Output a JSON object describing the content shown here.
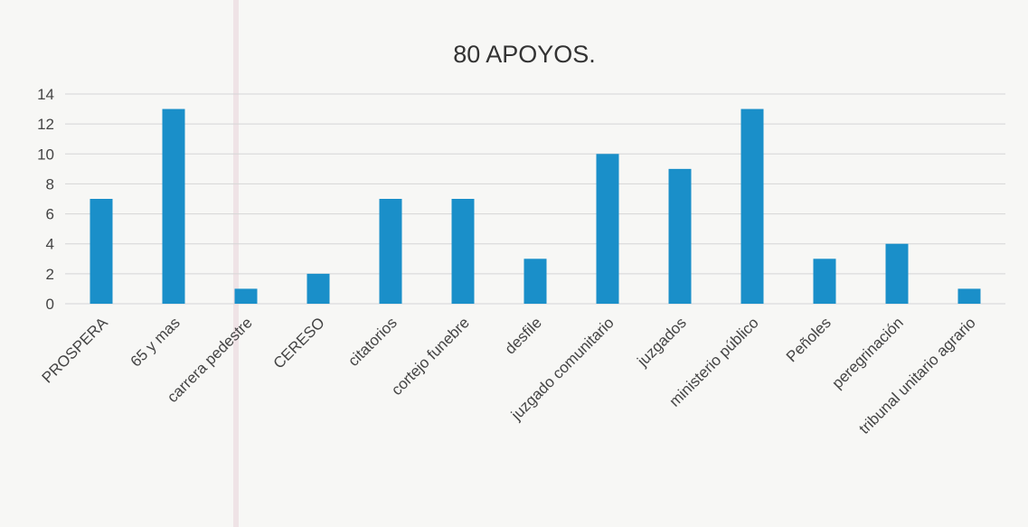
{
  "chart_data": {
    "type": "bar",
    "title": "80 APOYOS.",
    "categories": [
      "PROSPERA",
      "65 y mas",
      "carrera pedestre",
      "CERESO",
      "citatorios",
      "cortejo funebre",
      "desfile",
      "juzgado comunitario",
      "juzgados",
      "ministerio público",
      "Peñoles",
      "peregrinación",
      "tribunal unitario agrario"
    ],
    "values": [
      7,
      13,
      1,
      2,
      7,
      7,
      3,
      10,
      9,
      13,
      3,
      4,
      1
    ],
    "ylim": [
      0,
      14
    ],
    "yticks": [
      0,
      2,
      4,
      6,
      8,
      10,
      12,
      14
    ],
    "grid": true,
    "legend": "none",
    "bar_color": "#1a8fc9"
  }
}
